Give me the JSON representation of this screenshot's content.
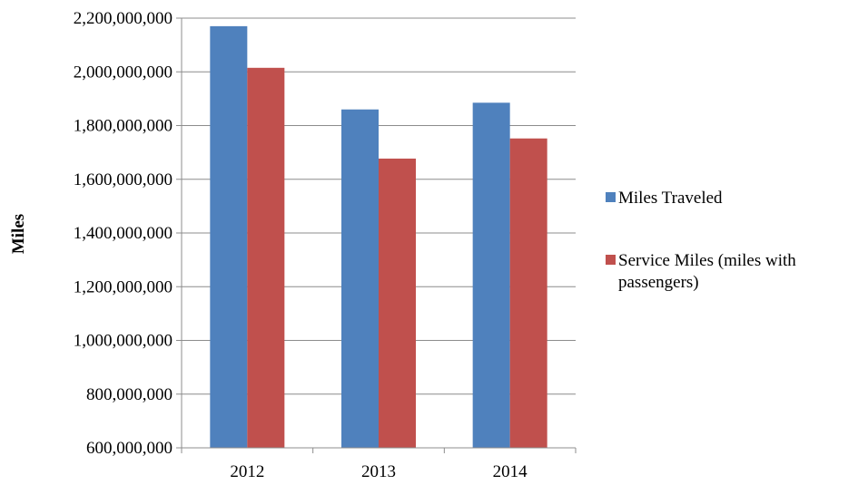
{
  "chart_data": {
    "type": "bar",
    "categories": [
      "2012",
      "2013",
      "2014"
    ],
    "series": [
      {
        "name": "Miles Traveled",
        "values": [
          2170000000,
          1860000000,
          1885000000
        ],
        "color": "#4F81BD"
      },
      {
        "name": "Service Miles (miles with passengers)",
        "values": [
          2015000000,
          1677000000,
          1752000000
        ],
        "color": "#C0504D"
      }
    ],
    "ylabel": "Miles",
    "xlabel": "",
    "ylim": [
      600000000,
      2200000000
    ],
    "yticks": [
      600000000,
      800000000,
      1000000000,
      1200000000,
      1400000000,
      1600000000,
      1800000000,
      2000000000,
      2200000000
    ],
    "ytick_labels": [
      "600,000,000",
      "800,000,000",
      "1,000,000,000",
      "1,200,000,000",
      "1,400,000,000",
      "1,600,000,000",
      "1,800,000,000",
      "2,000,000,000",
      "2,200,000,000"
    ],
    "grid": true,
    "legend_position": "right",
    "legend_lines": [
      [
        "Miles Traveled"
      ],
      [
        "Service Miles (miles with",
        "passengers)"
      ]
    ]
  }
}
